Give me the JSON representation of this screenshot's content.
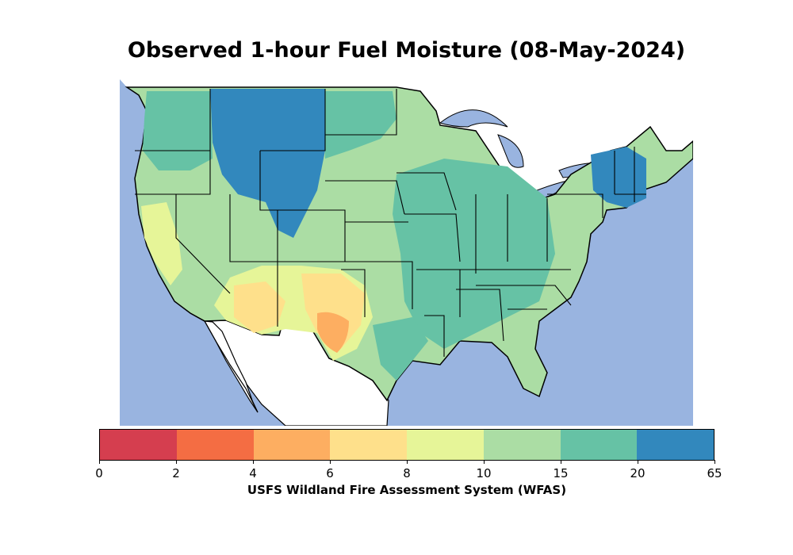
{
  "title": "Observed 1-hour Fuel Moisture (08-May-2024)",
  "colorbar": {
    "label": "USFS Wildland Fire Assessment System (WFAS)",
    "ticks": [
      "0",
      "2",
      "4",
      "6",
      "8",
      "10",
      "15",
      "20",
      "65"
    ],
    "colors": [
      "#d53e4f",
      "#f46d43",
      "#fdae61",
      "#fee08b",
      "#e6f598",
      "#abdda4",
      "#66c2a5",
      "#3288bd"
    ]
  },
  "map": {
    "ocean_color": "#99b4e0",
    "land_outside_color": "#ffffff",
    "default_land_color": "#abdda4",
    "description_classes": [
      "0-2",
      "2-4",
      "4-6",
      "6-8",
      "8-10",
      "10-15",
      "15-20",
      "20-65"
    ]
  }
}
